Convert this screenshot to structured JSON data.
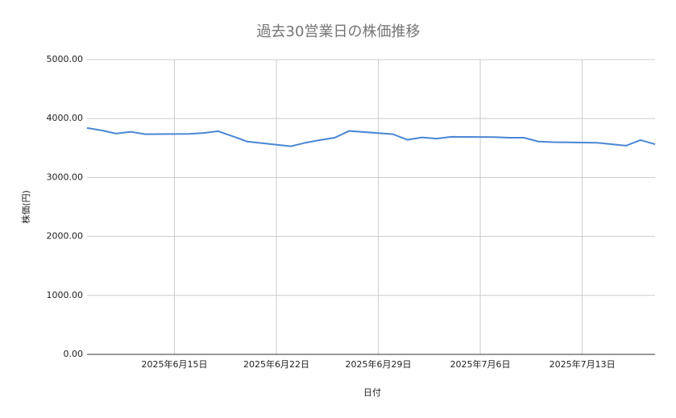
{
  "chart_data": {
    "type": "line",
    "title": "過去30営業日の株価推移",
    "x_label": "日付",
    "y_label": "株価(円)",
    "x": [
      "2025-06-09",
      "2025-06-10",
      "2025-06-11",
      "2025-06-12",
      "2025-06-13",
      "2025-06-16",
      "2025-06-17",
      "2025-06-18",
      "2025-06-19",
      "2025-06-20",
      "2025-06-23",
      "2025-06-24",
      "2025-06-25",
      "2025-06-26",
      "2025-06-27",
      "2025-06-30",
      "2025-07-01",
      "2025-07-02",
      "2025-07-03",
      "2025-07-04",
      "2025-07-07",
      "2025-07-08",
      "2025-07-09",
      "2025-07-10",
      "2025-07-11",
      "2025-07-14",
      "2025-07-15",
      "2025-07-16",
      "2025-07-17",
      "2025-07-18"
    ],
    "series": [
      {
        "name": "株価",
        "color": "#4a86d4",
        "values": [
          3840,
          3800,
          3745,
          3775,
          3735,
          3740,
          3755,
          3785,
          3700,
          3610,
          3530,
          3590,
          3635,
          3675,
          3790,
          3735,
          3640,
          3680,
          3660,
          3690,
          3685,
          3675,
          3675,
          3610,
          3600,
          3590,
          3565,
          3540,
          3635,
          3565
        ]
      }
    ],
    "xlim": [
      "2025-06-09",
      "2025-07-18"
    ],
    "xticks": [
      {
        "value": "2025-06-15",
        "label": "2025年6月15日"
      },
      {
        "value": "2025-06-22",
        "label": "2025年6月22日"
      },
      {
        "value": "2025-06-29",
        "label": "2025年6月29日"
      },
      {
        "value": "2025-07-06",
        "label": "2025年7月6日"
      },
      {
        "value": "2025-07-13",
        "label": "2025年7月13日"
      }
    ],
    "ylim": [
      0,
      5000
    ],
    "yticks": [
      {
        "value": 0,
        "label": "0.00"
      },
      {
        "value": 1000,
        "label": "1000.00"
      },
      {
        "value": 2000,
        "label": "2000.00"
      },
      {
        "value": 3000,
        "label": "3000.00"
      },
      {
        "value": 4000,
        "label": "4000.00"
      },
      {
        "value": 5000,
        "label": "5000.00"
      }
    ],
    "grid": true
  }
}
